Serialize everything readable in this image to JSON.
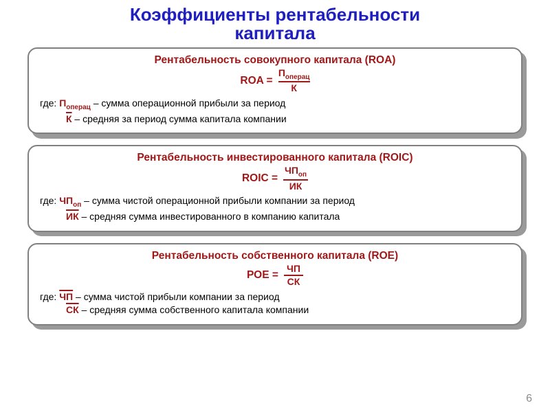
{
  "colors": {
    "title": "#1f1fbf",
    "accent": "#a01818",
    "border": "#808080",
    "shadow": "#9a9a9a",
    "text": "#000000",
    "pagenum": "#8a8a8a"
  },
  "title_line1": "Коэффициенты рентабельности",
  "title_line2": "капитала",
  "boxes": [
    {
      "title": "Рентабельность совокупного капитала (ROA)",
      "lhs": "ROA =",
      "num": "П",
      "num_sub": "операц",
      "den": "К",
      "den_over": true,
      "legend_where": "где: ",
      "legend1_sym": "П",
      "legend1_sub": "операц",
      "legend1_text": " – сумма операционной прибыли за период",
      "legend2_sym": "К",
      "legend2_over": true,
      "legend2_text": " – средняя за период сумма капитала компании"
    },
    {
      "title": "Рентабельность инвестированного капитала (ROIC)",
      "lhs": "ROIC =",
      "num": "ЧП",
      "num_sub": "оп",
      "den": "ИК",
      "den_over": true,
      "legend_where": "где: ",
      "legend1_sym": "ЧП",
      "legend1_sub": "оп",
      "legend1_text": " – сумма чистой операционной прибыли компании за период",
      "legend2_sym": "ИК",
      "legend2_over": true,
      "legend2_text": " – средняя сумма инвестированного в компанию капитала"
    },
    {
      "title": "Рентабельность собственного капитала (ROE)",
      "lhs": "РОЕ =",
      "num": "ЧП",
      "num_sub": "",
      "den": "СК",
      "den_over": true,
      "legend_where": "где: ",
      "legend1_sym": "ЧП",
      "legend1_sub": "",
      "legend1_over": true,
      "legend1_text": " – сумма чистой прибыли компании за период",
      "legend2_sym": "СК",
      "legend2_over": true,
      "legend2_text": " – средняя сумма собственного капитала компании"
    }
  ],
  "page_number": "6",
  "bar_widths": {
    "0": 46,
    "1": 36,
    "2": 28
  }
}
